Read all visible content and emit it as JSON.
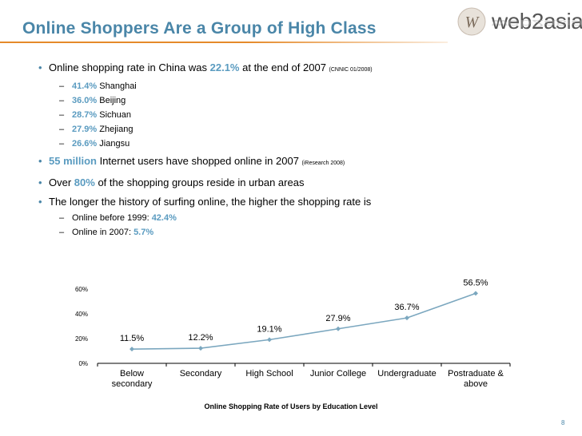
{
  "slide": {
    "title": "Online Shoppers Are a Group of High Class",
    "page_number": "8",
    "accent_color": "#4a86a8",
    "highlight_color": "#5a9bc0",
    "rule_color": "#e58a2a"
  },
  "logo": {
    "text": "web2asia",
    "mark_text": "W"
  },
  "bullets": {
    "b1": {
      "pre": "Online shopping rate in China was ",
      "value": "22.1%",
      "post": " at the end of 2007 ",
      "source": "(CNNIC 01/2008)"
    },
    "b1_subs": [
      {
        "value": "41.4%",
        "label": "Shanghai"
      },
      {
        "value": "36.0%",
        "label": "Beijing"
      },
      {
        "value": "28.7%",
        "label": "Sichuan"
      },
      {
        "value": "27.9%",
        "label": "Zhejiang"
      },
      {
        "value": "26.6%",
        "label": "Jiangsu"
      }
    ],
    "b2": {
      "value": "55 million",
      "post": " Internet users have shopped online in 2007 ",
      "source": "(iResearch 2008)"
    },
    "b3": {
      "pre": "Over ",
      "value": "80%",
      "post": " of the shopping groups reside in urban areas"
    },
    "b4": {
      "text": "The longer the history of surfing online, the higher the shopping rate is"
    },
    "b4_subs": [
      {
        "label": "Online before 1999: ",
        "value": "42.4%"
      },
      {
        "label": "Online in 2007: ",
        "value": "5.7%"
      }
    ]
  },
  "chart_data": {
    "type": "line",
    "title": "Online Shopping Rate of Users by Education Level",
    "categories": [
      [
        "Below",
        "secondary"
      ],
      [
        "Secondary"
      ],
      [
        "High School"
      ],
      [
        "Junior College"
      ],
      [
        "Undergraduate"
      ],
      [
        "Postraduate &",
        "above"
      ]
    ],
    "values": [
      11.5,
      12.2,
      19.1,
      27.9,
      36.7,
      56.5
    ],
    "value_labels": [
      "11.5%",
      "12.2%",
      "19.1%",
      "27.9%",
      "36.7%",
      "56.5%"
    ],
    "y_ticks": [
      "0%",
      "20%",
      "40%",
      "60%"
    ],
    "ylim": [
      0,
      60
    ],
    "line_color": "#7ba7bf",
    "xlabel": "",
    "ylabel": ""
  }
}
